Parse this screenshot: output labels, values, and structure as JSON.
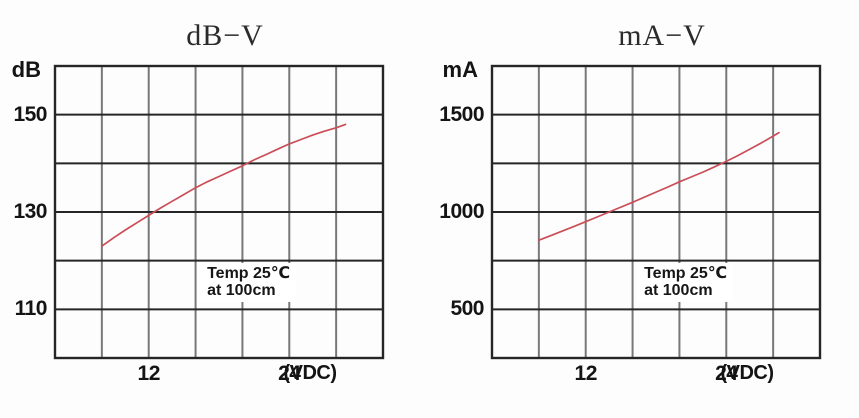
{
  "window": {
    "background": "#fdfdfd"
  },
  "colors": {
    "plot_border": "#262626",
    "grid_horizontal": "#262626",
    "grid_vertical": "#787878",
    "curve": "#ca4e58",
    "text": "#141414",
    "annotation_background": "#ffffff"
  },
  "chart_data": [
    {
      "type": "line",
      "title": "dB−V",
      "ylabel": "dB",
      "xlabel": "(VDC)",
      "xlim": [
        4,
        32
      ],
      "ylim": [
        100,
        160
      ],
      "x_grid_step": 4,
      "y_grid_step": 10,
      "grid": true,
      "legend": "none",
      "x_ticks": [
        {
          "x": 12,
          "label": "12"
        },
        {
          "x": 24,
          "label": "24"
        }
      ],
      "y_ticks": [
        {
          "y": 150,
          "label": "150"
        },
        {
          "y": 130,
          "label": "130"
        },
        {
          "y": 110,
          "label": "110"
        }
      ],
      "annotation": {
        "lines": [
          "Temp 25℃",
          "at 100cm"
        ],
        "anchor_x": 16.3,
        "anchor_y": 119.5
      },
      "series": [
        {
          "name": "sound-pressure-vs-voltage",
          "color": "#ca4e58",
          "x": [
            8,
            9,
            10,
            11,
            12,
            13,
            14,
            15,
            16,
            17,
            18,
            19,
            20,
            21,
            22,
            23,
            24,
            25,
            26,
            27,
            28,
            28.8
          ],
          "y": [
            123,
            124.7,
            126.3,
            127.8,
            129.3,
            130.8,
            132.2,
            133.6,
            135,
            136.2,
            137.3,
            138.4,
            139.5,
            140.7,
            141.8,
            142.9,
            144,
            144.9,
            145.8,
            146.6,
            147.3,
            148
          ]
        }
      ]
    },
    {
      "type": "line",
      "title": "mA−V",
      "ylabel": "mA",
      "xlabel": "(VDC)",
      "xlim": [
        4,
        32
      ],
      "ylim": [
        250,
        1750
      ],
      "x_grid_step": 4,
      "y_grid_step": 250,
      "grid": true,
      "legend": "none",
      "x_ticks": [
        {
          "x": 12,
          "label": "12"
        },
        {
          "x": 24,
          "label": "24"
        }
      ],
      "y_ticks": [
        {
          "y": 1500,
          "label": "1500"
        },
        {
          "y": 1000,
          "label": "1000"
        },
        {
          "y": 500,
          "label": "500"
        }
      ],
      "annotation": {
        "lines": [
          "Temp 25℃",
          "at 100cm"
        ],
        "anchor_x": 16.3,
        "anchor_y": 737
      },
      "series": [
        {
          "name": "current-vs-voltage",
          "color": "#ca4e58",
          "x": [
            8,
            9,
            10,
            11,
            12,
            13,
            14,
            15,
            16,
            17,
            18,
            19,
            20,
            21,
            22,
            23,
            24,
            25,
            26,
            27,
            28,
            28.5
          ],
          "y": [
            855,
            878,
            902,
            926,
            950,
            975,
            1000,
            1025,
            1050,
            1076,
            1102,
            1128,
            1155,
            1180,
            1205,
            1232,
            1260,
            1290,
            1322,
            1355,
            1390,
            1408
          ]
        }
      ]
    }
  ]
}
